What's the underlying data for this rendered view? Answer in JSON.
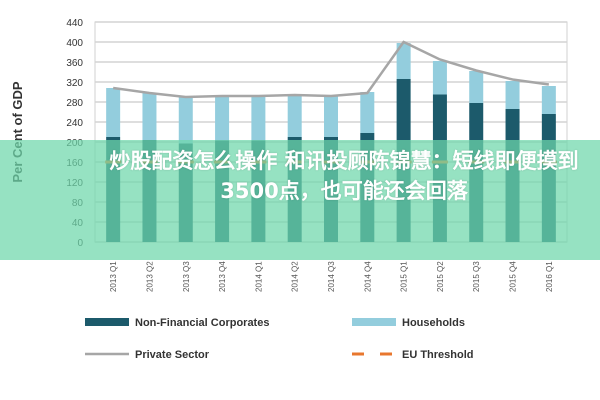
{
  "chart_data": {
    "type": "bar",
    "stacked": true,
    "title": "",
    "xlabel": "",
    "ylabel": "Per Cent of GDP",
    "ylim": [
      0,
      440
    ],
    "yticks": [
      0,
      40,
      80,
      120,
      160,
      200,
      240,
      280,
      320,
      360,
      400,
      440
    ],
    "grid": true,
    "legend_placement": "bottom",
    "categories": [
      "2013 Q1",
      "2013 Q2",
      "2013 Q3",
      "2013 Q4",
      "2014 Q1",
      "2014 Q2",
      "2014 Q3",
      "2014 Q4",
      "2015 Q1",
      "2015 Q2",
      "2015 Q3",
      "2015 Q4",
      "2016 Q1"
    ],
    "series": [
      {
        "name": "Non-Financial Corporates",
        "type": "bar",
        "color": "#1c5a6b",
        "values": [
          210,
          204,
          197,
          203,
          203,
          210,
          210,
          218,
          326,
          295,
          278,
          266,
          256
        ]
      },
      {
        "name": "Households",
        "type": "bar",
        "color": "#93cddd",
        "values": [
          98,
          94,
          93,
          89,
          89,
          83,
          82,
          82,
          72,
          67,
          64,
          56,
          56
        ]
      },
      {
        "name": "Private Sector",
        "type": "line",
        "color": "#a6a6a6",
        "values": [
          308,
          298,
          290,
          292,
          292,
          294,
          292,
          298,
          400,
          365,
          343,
          325,
          315
        ]
      },
      {
        "name": "EU Threshold",
        "type": "dash",
        "color": "#e8772e",
        "values": [
          160,
          160,
          160,
          160,
          160,
          160,
          160,
          160,
          160,
          160,
          160,
          160,
          160
        ]
      }
    ]
  },
  "overlay": {
    "line1": "炒股配资怎么操作 和讯投顾陈锦慧：短线即便摸到",
    "line2": "3500点，也可能还会回落"
  }
}
